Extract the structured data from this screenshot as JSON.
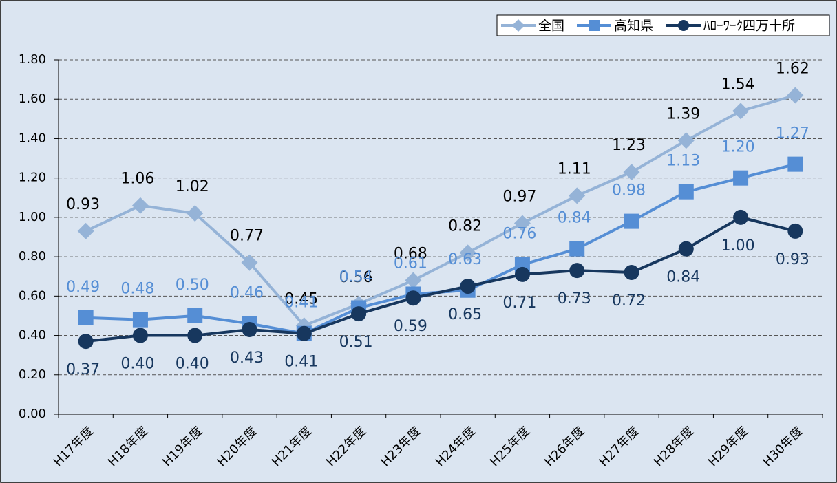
{
  "chart_data": {
    "type": "line",
    "categories": [
      "H17年度",
      "H18年度",
      "H19年度",
      "H20年度",
      "H21年度",
      "H22年度",
      "H23年度",
      "H24年度",
      "H25年度",
      "H26年度",
      "H27年度",
      "H28年度",
      "H29年度",
      "H30年度"
    ],
    "series": [
      {
        "name": "全国",
        "color": "#95b3d7",
        "marker": "diamond",
        "values": [
          0.93,
          1.06,
          1.02,
          0.77,
          0.45,
          0.56,
          0.68,
          0.82,
          0.97,
          1.11,
          1.23,
          1.39,
          1.54,
          1.62
        ],
        "value_labels": [
          "0.93",
          "1.06",
          "1.02",
          "0.77",
          "0.45",
          "0.56",
          "0.68",
          "0.82",
          "0.97",
          "1.11",
          "1.23",
          "1.39",
          "1.54",
          "1.62"
        ]
      },
      {
        "name": "高知県",
        "color": "#558ed5",
        "marker": "square",
        "values": [
          0.49,
          0.48,
          0.5,
          0.46,
          0.41,
          0.54,
          0.61,
          0.63,
          0.76,
          0.84,
          0.98,
          1.13,
          1.2,
          1.27
        ],
        "value_labels": [
          "0.49",
          "0.48",
          "0.50",
          "0.46",
          "0.41",
          "0.54",
          "0.61",
          "0.63",
          "0.76",
          "0.84",
          "0.98",
          "1.13",
          "1.20",
          "1.27"
        ]
      },
      {
        "name": "ﾊﾛｰﾜｰｸ四万十所",
        "color": "#17375e",
        "marker": "circle",
        "values": [
          0.37,
          0.4,
          0.4,
          0.43,
          0.41,
          0.51,
          0.59,
          0.65,
          0.71,
          0.73,
          0.72,
          0.84,
          1.0,
          0.93
        ],
        "value_labels": [
          "0.37",
          "0.40",
          "0.40",
          "0.43",
          "0.41",
          "0.51",
          "0.59",
          "0.65",
          "0.71",
          "0.73",
          "0.72",
          "0.84",
          "1.00",
          "0.93"
        ]
      }
    ],
    "ylim": [
      0,
      1.8
    ],
    "yticks": [
      {
        "value": 0,
        "label": "0.00"
      },
      {
        "value": 0.2,
        "label": "0.20"
      },
      {
        "value": 0.4,
        "label": "0.40"
      },
      {
        "value": 0.6,
        "label": "0.60"
      },
      {
        "value": 0.8,
        "label": "0.80"
      },
      {
        "value": 1,
        "label": "1.00"
      },
      {
        "value": 1.2,
        "label": "1.20"
      },
      {
        "value": 1.4,
        "label": "1.40"
      },
      {
        "value": 1.6,
        "label": "1.60"
      },
      {
        "value": 1.8,
        "label": "1.80"
      }
    ],
    "grid": true,
    "legend": "upper right"
  }
}
